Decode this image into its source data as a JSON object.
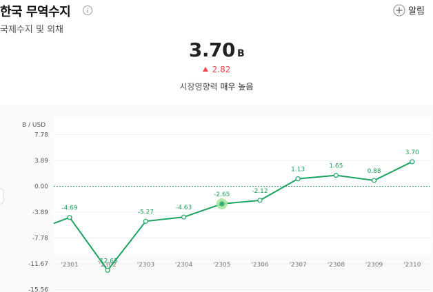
{
  "header": {
    "title": "한국 무역수지",
    "subtitle": "국제수지 및 외채",
    "alert_label": "알림"
  },
  "summary": {
    "value": "3.70",
    "unit": "B",
    "change": "2.82",
    "impact_label": "시장영향력",
    "impact_value": "매우 높음"
  },
  "colors": {
    "line": "#1aa260",
    "up": "#f0444c"
  },
  "chart_data": {
    "type": "line",
    "ylabel": "B / USD",
    "yticks": [
      "7.78",
      "3.89",
      "0.00",
      "-3.89",
      "-7.78",
      "-11.67",
      "-15.56"
    ],
    "ytick_values": [
      7.78,
      3.89,
      0,
      -3.89,
      -7.78,
      -11.67,
      -15.56
    ],
    "ylim": [
      -15.56,
      11.67
    ],
    "categories": [
      "'2301",
      "'2302",
      "'2303",
      "'2304",
      "'2305",
      "'2306",
      "'2307",
      "'2308",
      "'2309",
      "'2310"
    ],
    "values": [
      -4.69,
      -12.65,
      -5.27,
      -4.63,
      -2.65,
      -2.12,
      1.13,
      1.65,
      0.88,
      3.7
    ],
    "labels": [
      "-4.69",
      "-12.65",
      "-5.27",
      "-4.63",
      "-2.65",
      "-2.12",
      "1.13",
      "1.65",
      "0.88",
      "3.70"
    ],
    "lead_in_value": -5.6,
    "highlight_index": 4
  }
}
